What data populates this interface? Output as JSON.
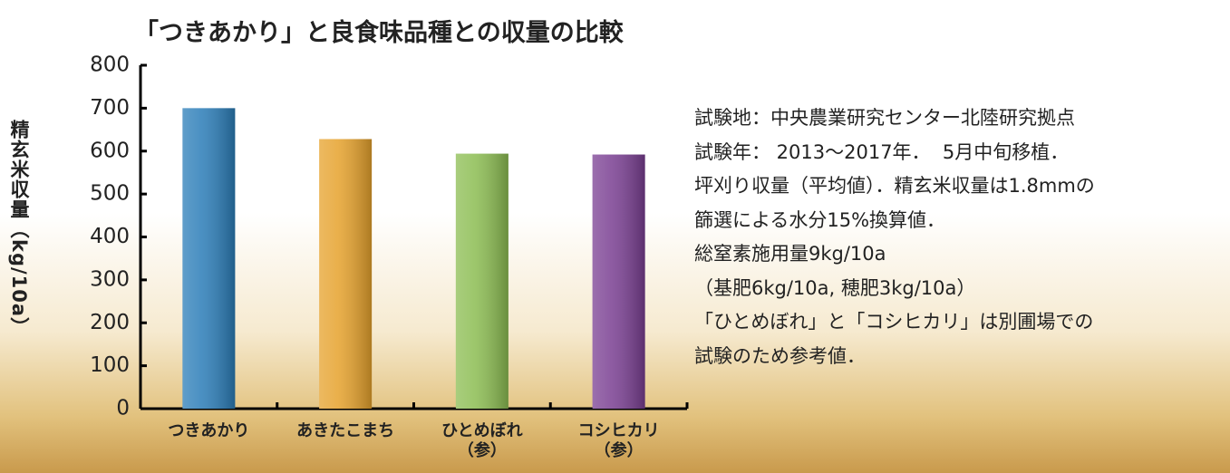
{
  "chart_data": {
    "type": "bar",
    "title": "「つきあかり」と良食味品種との収量の比較",
    "y_label": "精玄米収量（kg/10a）",
    "categories": [
      "つきあかり",
      "あきたこまち",
      "ひとめぼれ\n（参）",
      "コシヒカリ\n（参）"
    ],
    "values": [
      700,
      628,
      594,
      592
    ],
    "colors": [
      "#2b7db8",
      "#e6a22c",
      "#8cbd52",
      "#7a3f92"
    ],
    "ylim": [
      0,
      800
    ],
    "yticks": [
      0,
      100,
      200,
      300,
      400,
      500,
      600,
      700,
      800
    ],
    "grid": false,
    "notes": [
      "試験地：中央農業研究センター北陸研究拠点",
      "試験年： 2013～2017年．  5月中旬移植．",
      "坪刈り収量（平均値）．精玄米収量は1.8mmの",
      "篩選による水分15%換算値．",
      "総窒素施用量9kg/10a",
      "（基肥6kg/10a, 穂肥3kg/10a）",
      "「ひとめぼれ」と「コシヒカリ」は別圃場での",
      "試験のため参考値．"
    ]
  }
}
